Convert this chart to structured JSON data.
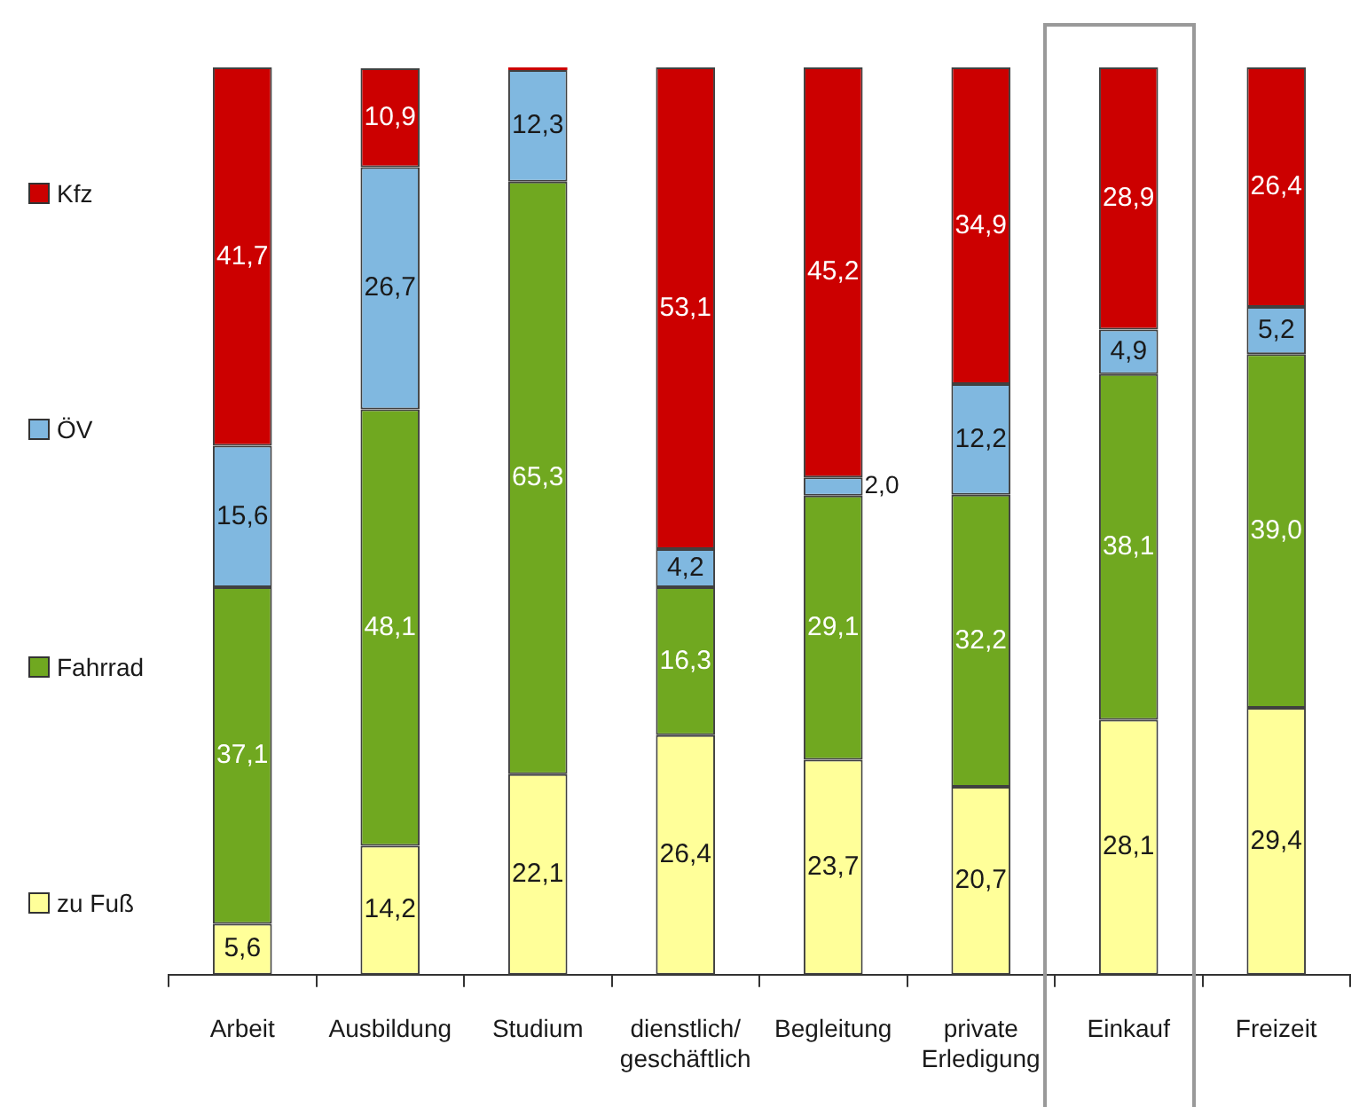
{
  "chart_data": {
    "type": "bar",
    "stacked": true,
    "legend": "left",
    "categories": [
      "Arbeit",
      "Ausbildung",
      "Studium",
      "dienstlich/geschäftlich",
      "Begleitung",
      "private Erledigung",
      "Einkauf",
      "Freizeit"
    ],
    "series": [
      {
        "name": "zu Fuß",
        "color": "#ffff99",
        "values": [
          5.6,
          14.2,
          22.1,
          26.4,
          23.7,
          20.7,
          28.1,
          29.4
        ],
        "value_labels": [
          "5,6",
          "14,2",
          "22,1",
          "26,4",
          "23,7",
          "20,7",
          "28,1",
          "29,4"
        ]
      },
      {
        "name": "Fahrrad",
        "color": "#70a820",
        "values": [
          37.1,
          48.1,
          65.3,
          16.3,
          29.1,
          32.2,
          38.1,
          39.0
        ],
        "value_labels": [
          "37,1",
          "48,1",
          "65,3",
          "16,3",
          "29,1",
          "32,2",
          "38,1",
          "39,0"
        ]
      },
      {
        "name": "ÖV",
        "color": "#80b8e0",
        "values": [
          15.6,
          26.7,
          12.3,
          4.2,
          2.0,
          12.2,
          4.9,
          5.2
        ],
        "value_labels": [
          "15,6",
          "26,7",
          "12,3",
          "4,2",
          "2,0",
          "12,2",
          "4,9",
          "5,2"
        ]
      },
      {
        "name": "Kfz",
        "color": "#cc0000",
        "values": [
          41.7,
          10.9,
          0.3,
          53.1,
          45.2,
          34.9,
          28.9,
          26.4
        ],
        "value_labels": [
          "41,7",
          "10,9",
          null,
          "53,1",
          "45,2",
          "34,9",
          "28,9",
          "26,4"
        ]
      }
    ]
  }
}
